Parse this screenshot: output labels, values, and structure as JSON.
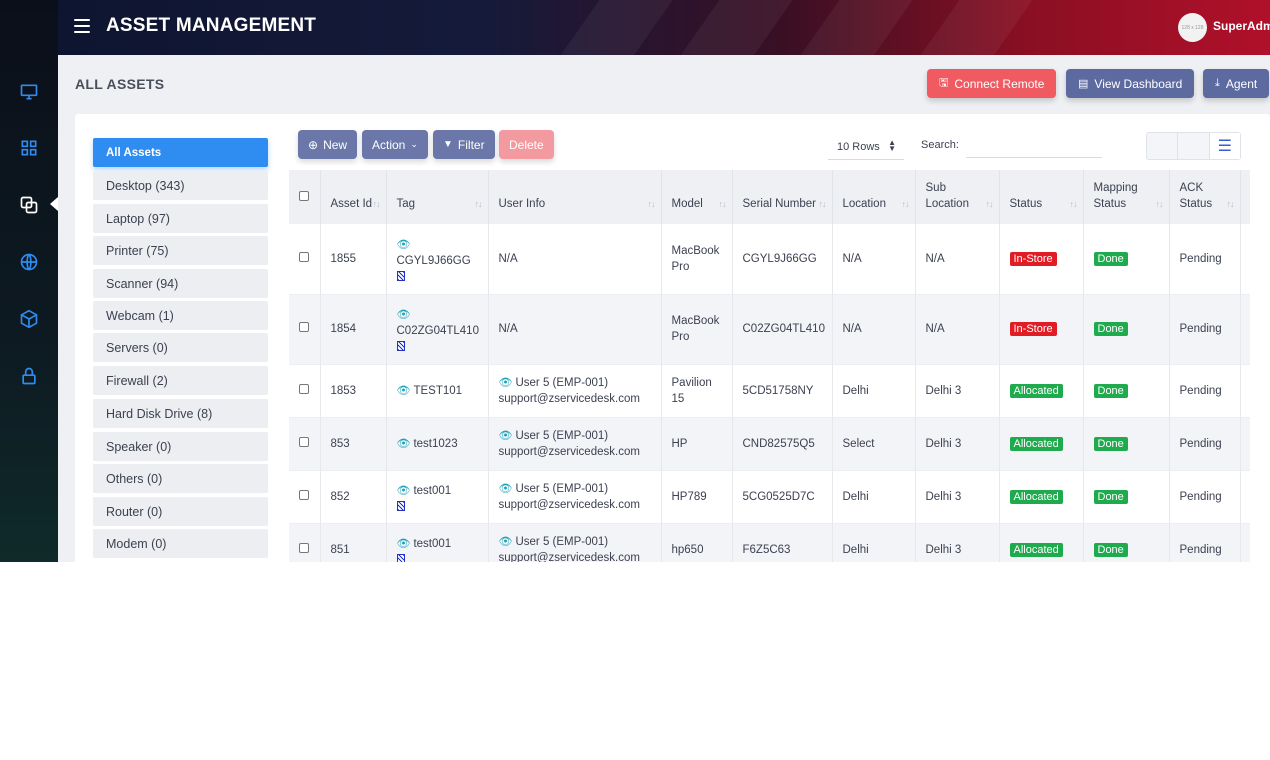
{
  "header": {
    "title": "ASSET MANAGEMENT",
    "avatar_text": "128 x 128",
    "user": "SuperAdm"
  },
  "page": {
    "title": "ALL ASSETS"
  },
  "actions": {
    "connect_remote": "Connect Remote",
    "view_dashboard": "View Dashboard",
    "agent": "Agent"
  },
  "categories": [
    "All Assets",
    "Desktop (343)",
    "Laptop (97)",
    "Printer (75)",
    "Scanner (94)",
    "Webcam (1)",
    "Servers (0)",
    "Firewall (2)",
    "Hard Disk Drive (8)",
    "Speaker (0)",
    "Others (0)",
    "Router (0)",
    "Modem (0)"
  ],
  "toolbar": {
    "new": "New",
    "action": "Action",
    "filter": "Filter",
    "delete": "Delete",
    "rows": "10 Rows",
    "search_label": "Search:",
    "search_value": ""
  },
  "columns": [
    "Asset Id",
    "Tag",
    "User Info",
    "Model",
    "Serial Number",
    "Location",
    "Sub Location",
    "Status",
    "Mapping Status",
    "ACK Status"
  ],
  "rows": [
    {
      "id": "1855",
      "tag": "CGYL9J66GG",
      "user": "N/A",
      "email": "",
      "model": "MacBook Pro",
      "serial": "CGYL9J66GG",
      "location": "N/A",
      "sub": "N/A",
      "status": "In-Store",
      "mapping": "Done",
      "ack": "Pending"
    },
    {
      "id": "1854",
      "tag": "C02ZG04TL410",
      "user": "N/A",
      "email": "",
      "model": "MacBook Pro",
      "serial": "C02ZG04TL410",
      "location": "N/A",
      "sub": "N/A",
      "status": "In-Store",
      "mapping": "Done",
      "ack": "Pending"
    },
    {
      "id": "1853",
      "tag": "TEST101",
      "user": "User 5 (EMP-001)",
      "email": "support@zservicedesk.com",
      "model": "Pavilion 15",
      "serial": "5CD51758NY",
      "location": "Delhi",
      "sub": "Delhi 3",
      "status": "Allocated",
      "mapping": "Done",
      "ack": "Pending"
    },
    {
      "id": "853",
      "tag": "test1023",
      "user": "User 5 (EMP-001)",
      "email": "support@zservicedesk.com",
      "model": "HP",
      "serial": "CND82575Q5",
      "location": "Select",
      "sub": "Delhi 3",
      "status": "Allocated",
      "mapping": "Done",
      "ack": "Pending"
    },
    {
      "id": "852",
      "tag": "test001",
      "user": "User 5 (EMP-001)",
      "email": "support@zservicedesk.com",
      "model": "HP789",
      "serial": "5CG0525D7C",
      "location": "Delhi",
      "sub": "Delhi 3",
      "status": "Allocated",
      "mapping": "Done",
      "ack": "Pending"
    },
    {
      "id": "851",
      "tag": "test001",
      "user": "User 5 (EMP-001)",
      "email": "support@zservicedesk.com",
      "model": "hp650",
      "serial": "F6Z5C63",
      "location": "Delhi",
      "sub": "Delhi 3",
      "status": "Allocated",
      "mapping": "Done",
      "ack": "Pending"
    }
  ],
  "colors": {
    "in_store": "#e01d24",
    "allocated": "#1faa4d",
    "done": "#1faa4d",
    "active_category": "#2f8cf0",
    "remote_button": "#ef5b61"
  }
}
